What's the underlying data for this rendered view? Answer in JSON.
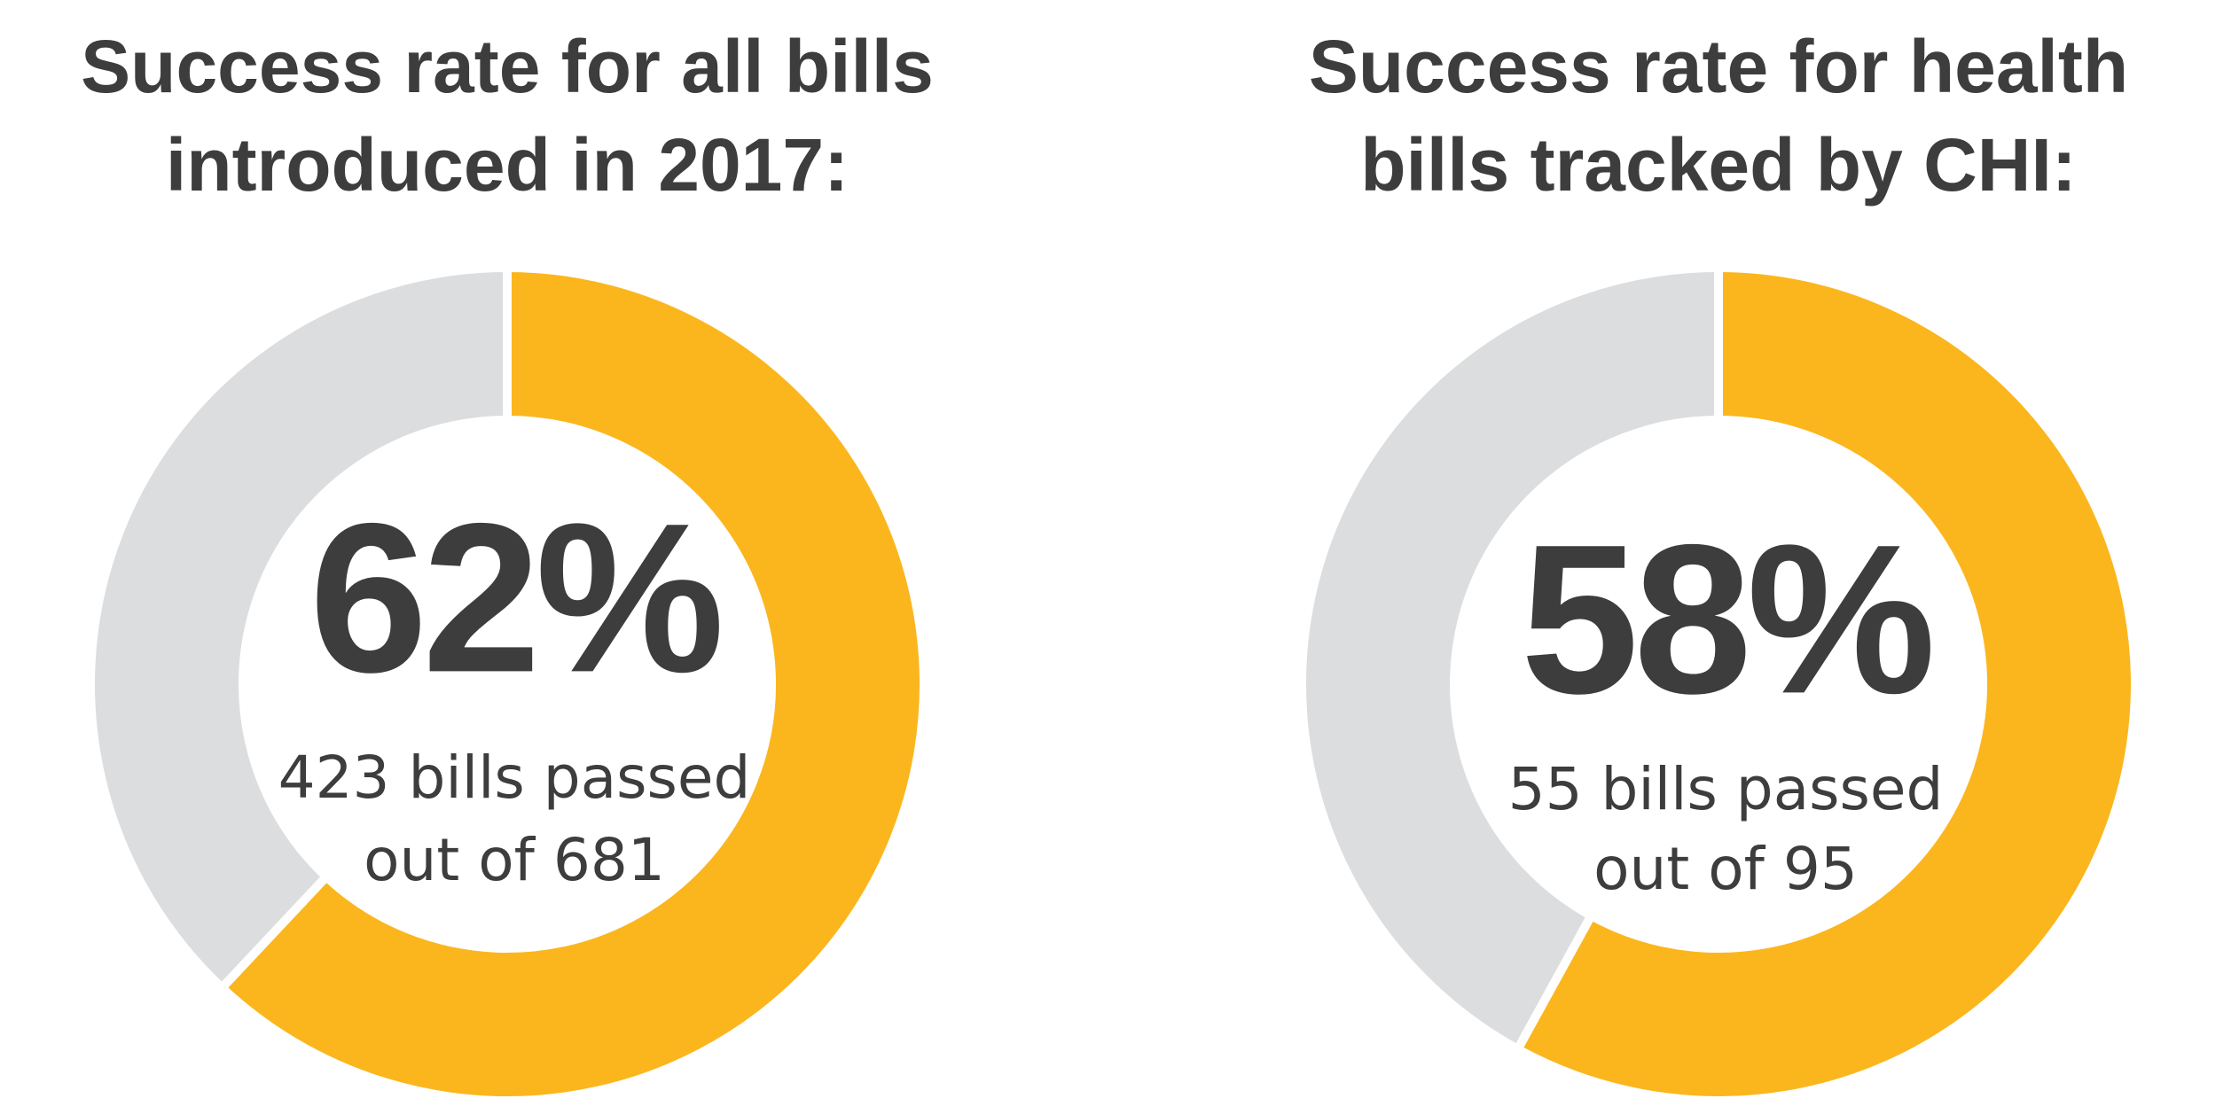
{
  "chart_data": [
    {
      "type": "donut",
      "title": [
        "Success rate for all bills",
        "introduced in 2017:"
      ],
      "values": [
        62,
        38
      ],
      "value_labels": [
        "62%",
        null
      ],
      "colors": [
        "#fbb61e",
        "#dcdddf"
      ],
      "annotation": [
        "423 bills passed",
        "out of 681"
      ]
    },
    {
      "type": "donut",
      "title": [
        "Success rate for health",
        "bills tracked by CHI:"
      ],
      "values": [
        58,
        42
      ],
      "value_labels": [
        "58%",
        null
      ],
      "colors": [
        "#fbb61e",
        "#dcdddf"
      ],
      "annotation": [
        "55 bills passed",
        "out of 95"
      ]
    }
  ]
}
